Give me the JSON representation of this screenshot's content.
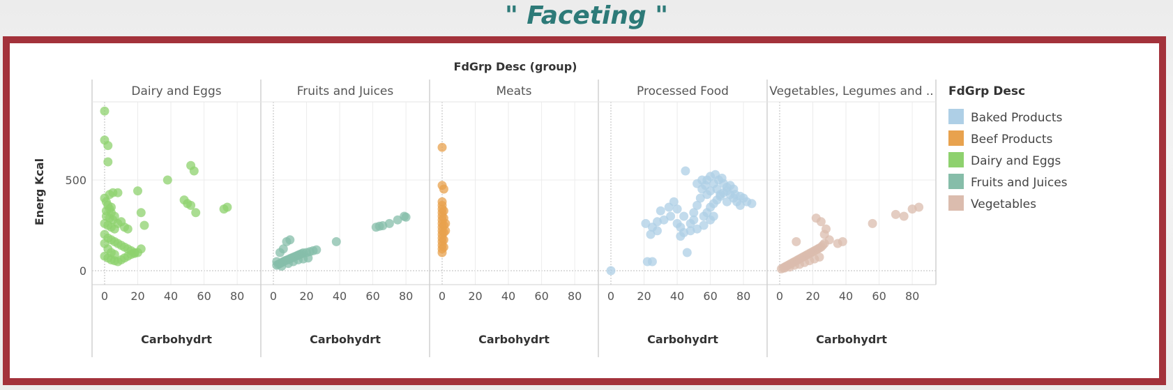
{
  "slide": {
    "title": "\" Faceting \""
  },
  "chart_data": {
    "type": "scatter",
    "title": "FdGrp Desc (group)",
    "xlabel": "Carbohydrt",
    "ylabel": "Energ Kcal",
    "xlim": [
      0,
      85
    ],
    "ylim": [
      0,
      900
    ],
    "x_ticks": [
      0,
      20,
      40,
      60,
      80
    ],
    "y_ticks": [
      0,
      500
    ],
    "grid": true,
    "legend": {
      "title": "FdGrp Desc",
      "placement": "right",
      "items": [
        {
          "name": "Baked Products",
          "color": "#aecfe6"
        },
        {
          "name": "Beef Products",
          "color": "#e8a24e"
        },
        {
          "name": "Dairy and Eggs",
          "color": "#8ed16e"
        },
        {
          "name": "Fruits and Juices",
          "color": "#86bda9"
        },
        {
          "name": "Vegetables",
          "color": "#dbbcae"
        }
      ]
    },
    "facets": [
      {
        "label": "Dairy and Eggs",
        "series": [
          {
            "name": "Dairy and Eggs",
            "color": "#8ed16e",
            "points": [
              [
                0,
                880
              ],
              [
                0,
                720
              ],
              [
                2,
                690
              ],
              [
                2,
                600
              ],
              [
                0,
                400
              ],
              [
                1,
                380
              ],
              [
                2,
                360
              ],
              [
                3,
                340
              ],
              [
                4,
                320
              ],
              [
                1,
                300
              ],
              [
                3,
                290
              ],
              [
                5,
                280
              ],
              [
                0,
                260
              ],
              [
                2,
                250
              ],
              [
                4,
                240
              ],
              [
                6,
                230
              ],
              [
                8,
                260
              ],
              [
                10,
                270
              ],
              [
                12,
                240
              ],
              [
                14,
                230
              ],
              [
                0,
                200
              ],
              [
                2,
                180
              ],
              [
                4,
                170
              ],
              [
                6,
                160
              ],
              [
                8,
                150
              ],
              [
                10,
                140
              ],
              [
                12,
                130
              ],
              [
                14,
                120
              ],
              [
                16,
                110
              ],
              [
                18,
                100
              ],
              [
                0,
                80
              ],
              [
                2,
                70
              ],
              [
                4,
                60
              ],
              [
                6,
                55
              ],
              [
                8,
                50
              ],
              [
                10,
                60
              ],
              [
                12,
                70
              ],
              [
                14,
                80
              ],
              [
                16,
                90
              ],
              [
                18,
                95
              ],
              [
                20,
                100
              ],
              [
                22,
                120
              ],
              [
                3,
                420
              ],
              [
                5,
                430
              ],
              [
                1,
                330
              ],
              [
                4,
                350
              ],
              [
                6,
                300
              ],
              [
                8,
                430
              ],
              [
                0,
                150
              ],
              [
                2,
                120
              ],
              [
                4,
                100
              ],
              [
                6,
                90
              ],
              [
                20,
                440
              ],
              [
                22,
                320
              ],
              [
                24,
                250
              ],
              [
                38,
                500
              ],
              [
                52,
                580
              ],
              [
                54,
                550
              ],
              [
                48,
                390
              ],
              [
                50,
                370
              ],
              [
                52,
                360
              ],
              [
                55,
                320
              ],
              [
                72,
                340
              ],
              [
                74,
                350
              ]
            ]
          }
        ]
      },
      {
        "label": "Fruits and Juices",
        "series": [
          {
            "name": "Fruits and Juices",
            "color": "#86bda9",
            "points": [
              [
                2,
                30
              ],
              [
                3,
                35
              ],
              [
                4,
                40
              ],
              [
                5,
                45
              ],
              [
                6,
                50
              ],
              [
                7,
                55
              ],
              [
                8,
                58
              ],
              [
                9,
                62
              ],
              [
                10,
                66
              ],
              [
                11,
                70
              ],
              [
                12,
                74
              ],
              [
                13,
                78
              ],
              [
                14,
                82
              ],
              [
                15,
                86
              ],
              [
                16,
                90
              ],
              [
                17,
                94
              ],
              [
                18,
                98
              ],
              [
                20,
                100
              ],
              [
                22,
                105
              ],
              [
                24,
                110
              ],
              [
                26,
                115
              ],
              [
                4,
                100
              ],
              [
                6,
                120
              ],
              [
                8,
                160
              ],
              [
                10,
                170
              ],
              [
                2,
                50
              ],
              [
                5,
                25
              ],
              [
                9,
                40
              ],
              [
                12,
                50
              ],
              [
                15,
                60
              ],
              [
                18,
                65
              ],
              [
                21,
                70
              ],
              [
                38,
                160
              ],
              [
                62,
                240
              ],
              [
                64,
                245
              ],
              [
                66,
                248
              ],
              [
                70,
                260
              ],
              [
                75,
                280
              ],
              [
                79,
                300
              ],
              [
                80,
                295
              ]
            ]
          }
        ]
      },
      {
        "label": "Meats",
        "series": [
          {
            "name": "Beef Products",
            "color": "#e8a24e",
            "points": [
              [
                0,
                680
              ],
              [
                0,
                470
              ],
              [
                1,
                450
              ],
              [
                0,
                380
              ],
              [
                0,
                360
              ],
              [
                0,
                340
              ],
              [
                0,
                320
              ],
              [
                0,
                300
              ],
              [
                0,
                280
              ],
              [
                0,
                260
              ],
              [
                0,
                240
              ],
              [
                0,
                220
              ],
              [
                0,
                200
              ],
              [
                0,
                180
              ],
              [
                0,
                160
              ],
              [
                0,
                140
              ],
              [
                0,
                120
              ],
              [
                0,
                100
              ],
              [
                1,
                330
              ],
              [
                1,
                290
              ],
              [
                1,
                250
              ],
              [
                1,
                210
              ],
              [
                1,
                170
              ],
              [
                1,
                130
              ],
              [
                2,
                260
              ],
              [
                2,
                220
              ]
            ]
          }
        ]
      },
      {
        "label": "Processed Food",
        "series": [
          {
            "name": "Baked Products",
            "color": "#aecfe6",
            "points": [
              [
                0,
                0
              ],
              [
                22,
                50
              ],
              [
                25,
                50
              ],
              [
                21,
                260
              ],
              [
                25,
                240
              ],
              [
                28,
                270
              ],
              [
                30,
                330
              ],
              [
                35,
                350
              ],
              [
                38,
                380
              ],
              [
                40,
                260
              ],
              [
                42,
                240
              ],
              [
                44,
                300
              ],
              [
                45,
                550
              ],
              [
                46,
                100
              ],
              [
                48,
                260
              ],
              [
                50,
                280
              ],
              [
                50,
                320
              ],
              [
                52,
                360
              ],
              [
                54,
                400
              ],
              [
                55,
                450
              ],
              [
                57,
                470
              ],
              [
                58,
                500
              ],
              [
                60,
                520
              ],
              [
                62,
                480
              ],
              [
                64,
                450
              ],
              [
                65,
                500
              ],
              [
                67,
                510
              ],
              [
                68,
                480
              ],
              [
                70,
                440
              ],
              [
                72,
                420
              ],
              [
                74,
                400
              ],
              [
                76,
                380
              ],
              [
                78,
                360
              ],
              [
                80,
                400
              ],
              [
                82,
                380
              ],
              [
                85,
                370
              ],
              [
                56,
                300
              ],
              [
                58,
                320
              ],
              [
                60,
                350
              ],
              [
                62,
                370
              ],
              [
                64,
                390
              ],
              [
                66,
                410
              ],
              [
                68,
                430
              ],
              [
                70,
                460
              ],
              [
                72,
                470
              ],
              [
                74,
                450
              ],
              [
                60,
                280
              ],
              [
                62,
                300
              ],
              [
                48,
                220
              ],
              [
                52,
                230
              ],
              [
                56,
                250
              ],
              [
                44,
                210
              ],
              [
                42,
                190
              ],
              [
                58,
                420
              ],
              [
                60,
                440
              ],
              [
                52,
                480
              ],
              [
                55,
                500
              ],
              [
                63,
                530
              ],
              [
                66,
                420
              ],
              [
                70,
                380
              ],
              [
                75,
                420
              ],
              [
                78,
                410
              ],
              [
                40,
                340
              ],
              [
                36,
                300
              ],
              [
                32,
                280
              ],
              [
                28,
                220
              ],
              [
                24,
                200
              ]
            ]
          }
        ]
      },
      {
        "label": "Vegetables, Legumes and ..",
        "series": [
          {
            "name": "Vegetables",
            "color": "#dbbcae",
            "points": [
              [
                1,
                10
              ],
              [
                2,
                15
              ],
              [
                3,
                20
              ],
              [
                4,
                25
              ],
              [
                5,
                30
              ],
              [
                6,
                35
              ],
              [
                7,
                40
              ],
              [
                8,
                45
              ],
              [
                9,
                50
              ],
              [
                10,
                55
              ],
              [
                11,
                60
              ],
              [
                12,
                65
              ],
              [
                13,
                70
              ],
              [
                14,
                75
              ],
              [
                15,
                80
              ],
              [
                16,
                85
              ],
              [
                17,
                90
              ],
              [
                18,
                95
              ],
              [
                19,
                100
              ],
              [
                20,
                105
              ],
              [
                21,
                110
              ],
              [
                22,
                115
              ],
              [
                23,
                120
              ],
              [
                24,
                125
              ],
              [
                25,
                130
              ],
              [
                26,
                140
              ],
              [
                27,
                150
              ],
              [
                3,
                15
              ],
              [
                6,
                20
              ],
              [
                9,
                30
              ],
              [
                12,
                35
              ],
              [
                15,
                45
              ],
              [
                18,
                55
              ],
              [
                21,
                65
              ],
              [
                24,
                75
              ],
              [
                10,
                160
              ],
              [
                22,
                290
              ],
              [
                25,
                270
              ],
              [
                27,
                200
              ],
              [
                28,
                230
              ],
              [
                30,
                170
              ],
              [
                35,
                150
              ],
              [
                38,
                160
              ],
              [
                56,
                260
              ],
              [
                70,
                310
              ],
              [
                75,
                300
              ],
              [
                80,
                340
              ],
              [
                84,
                350
              ]
            ]
          }
        ]
      }
    ]
  }
}
